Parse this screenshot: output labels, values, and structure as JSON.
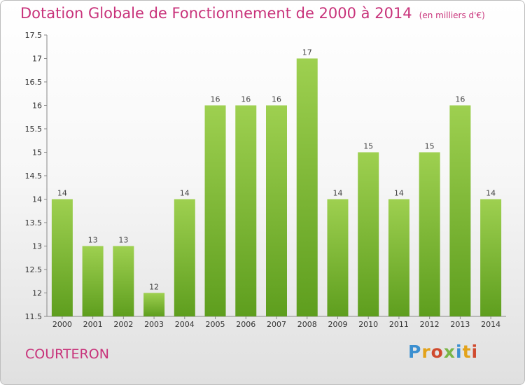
{
  "header": {
    "title": "Dotation Globale de Fonctionnement de 2000 à 2014",
    "subtitle": "(en milliers d'€)"
  },
  "footer": {
    "commune": "COURTERON",
    "logo_letters": [
      {
        "ch": "P",
        "color": "#3b8fd0"
      },
      {
        "ch": "r",
        "color": "#e3a21a"
      },
      {
        "ch": "o",
        "color": "#d04a2e"
      },
      {
        "ch": "x",
        "color": "#7ab648"
      },
      {
        "ch": "i",
        "color": "#3b8fd0"
      },
      {
        "ch": "t",
        "color": "#e3a21a"
      },
      {
        "ch": "i",
        "color": "#d04a2e"
      }
    ]
  },
  "colors": {
    "bar_top": "#9ed050",
    "bar_bottom": "#5e9e1e",
    "title": "#c8327a"
  },
  "chart_data": {
    "type": "bar",
    "title": "Dotation Globale de Fonctionnement de 2000 à 2014",
    "subtitle": "(en milliers d'€)",
    "categories": [
      "2000",
      "2001",
      "2002",
      "2003",
      "2004",
      "2005",
      "2006",
      "2007",
      "2008",
      "2009",
      "2010",
      "2011",
      "2012",
      "2013",
      "2014"
    ],
    "values": [
      14,
      13,
      13,
      12,
      14,
      16,
      16,
      16,
      17,
      14,
      15,
      14,
      15,
      16,
      14
    ],
    "ylim": [
      11.5,
      17.5
    ],
    "yticks": [
      11.5,
      12,
      12.5,
      13,
      13.5,
      14,
      14.5,
      15,
      15.5,
      16,
      16.5,
      17,
      17.5
    ],
    "grid": false,
    "legend": "none"
  }
}
